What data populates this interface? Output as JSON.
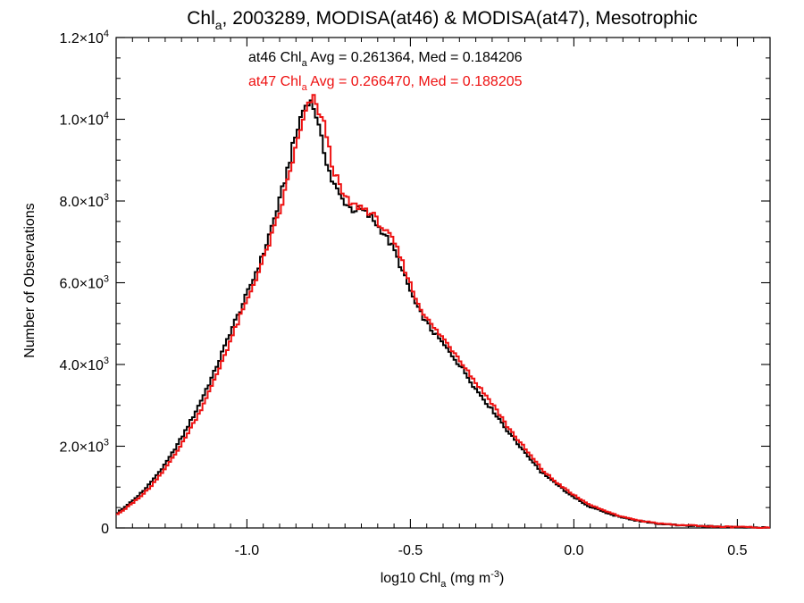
{
  "chart_data": {
    "type": "line",
    "step": true,
    "title": {
      "pre": "Chl",
      "sub": "a",
      "post": ", 2003289, MODISA(at46) & MODISA(at47), Mesotrophic"
    },
    "xlabel": {
      "pre": "log10 Chl",
      "sub": "a",
      "mid": " (mg m",
      "sup": "-3",
      "post": ")"
    },
    "ylabel": "Number of Observations",
    "xlim": [
      -1.4,
      0.6
    ],
    "ylim": [
      0,
      12000
    ],
    "x_ticks": [
      {
        "value": -1.0,
        "label": "-1.0"
      },
      {
        "value": -0.5,
        "label": "-0.5"
      },
      {
        "value": 0.0,
        "label": "0.0"
      },
      {
        "value": 0.5,
        "label": "0.5"
      }
    ],
    "y_ticks": [
      {
        "value": 0,
        "label": "0"
      },
      {
        "value": 2000,
        "mant": "2.0",
        "exp": "3"
      },
      {
        "value": 4000,
        "mant": "4.0",
        "exp": "3"
      },
      {
        "value": 6000,
        "mant": "6.0",
        "exp": "3"
      },
      {
        "value": 8000,
        "mant": "8.0",
        "exp": "3"
      },
      {
        "value": 10000,
        "mant": "1.0",
        "exp": "4"
      },
      {
        "value": 12000,
        "mant": "1.2",
        "exp": "4"
      }
    ],
    "times_sign": "×10",
    "grid": false,
    "legend_placement": "top-center",
    "series": [
      {
        "name": "at46",
        "color": "#000000",
        "stats": {
          "pre": "at46 Chl",
          "sub": "a",
          "post": " Avg = 0.261364, Med = 0.184206"
        },
        "anchors": [
          [
            -1.4,
            350
          ],
          [
            -1.35,
            650
          ],
          [
            -1.3,
            1050
          ],
          [
            -1.25,
            1550
          ],
          [
            -1.2,
            2200
          ],
          [
            -1.15,
            2950
          ],
          [
            -1.1,
            3800
          ],
          [
            -1.05,
            4800
          ],
          [
            -1.0,
            5700
          ],
          [
            -0.95,
            6700
          ],
          [
            -0.9,
            8000
          ],
          [
            -0.86,
            9300
          ],
          [
            -0.83,
            10200
          ],
          [
            -0.81,
            10500
          ],
          [
            -0.79,
            10200
          ],
          [
            -0.77,
            9400
          ],
          [
            -0.74,
            8500
          ],
          [
            -0.71,
            8050
          ],
          [
            -0.68,
            7800
          ],
          [
            -0.65,
            7780
          ],
          [
            -0.62,
            7600
          ],
          [
            -0.58,
            7200
          ],
          [
            -0.55,
            6800
          ],
          [
            -0.52,
            6200
          ],
          [
            -0.48,
            5400
          ],
          [
            -0.44,
            4900
          ],
          [
            -0.4,
            4500
          ],
          [
            -0.35,
            4000
          ],
          [
            -0.3,
            3400
          ],
          [
            -0.25,
            2900
          ],
          [
            -0.2,
            2350
          ],
          [
            -0.15,
            1850
          ],
          [
            -0.1,
            1380
          ],
          [
            -0.05,
            1050
          ],
          [
            0.0,
            750
          ],
          [
            0.05,
            520
          ],
          [
            0.1,
            370
          ],
          [
            0.15,
            250
          ],
          [
            0.2,
            170
          ],
          [
            0.25,
            110
          ],
          [
            0.3,
            80
          ],
          [
            0.35,
            60
          ],
          [
            0.4,
            45
          ],
          [
            0.45,
            30
          ],
          [
            0.5,
            22
          ],
          [
            0.55,
            15
          ],
          [
            0.6,
            10
          ]
        ]
      },
      {
        "name": "at47",
        "color": "#ee1111",
        "stats": {
          "pre": "at47 Chl",
          "sub": "a",
          "post": " Avg = 0.266470, Med = 0.188205"
        },
        "anchors": [
          [
            -1.4,
            320
          ],
          [
            -1.35,
            600
          ],
          [
            -1.3,
            950
          ],
          [
            -1.25,
            1450
          ],
          [
            -1.2,
            2050
          ],
          [
            -1.15,
            2750
          ],
          [
            -1.1,
            3600
          ],
          [
            -1.05,
            4600
          ],
          [
            -1.0,
            5550
          ],
          [
            -0.95,
            6550
          ],
          [
            -0.9,
            7700
          ],
          [
            -0.86,
            9000
          ],
          [
            -0.83,
            9900
          ],
          [
            -0.81,
            10350
          ],
          [
            -0.8,
            10550
          ],
          [
            -0.78,
            10200
          ],
          [
            -0.76,
            9800
          ],
          [
            -0.74,
            8900
          ],
          [
            -0.71,
            8200
          ],
          [
            -0.68,
            7900
          ],
          [
            -0.65,
            7850
          ],
          [
            -0.62,
            7700
          ],
          [
            -0.58,
            7300
          ],
          [
            -0.55,
            7000
          ],
          [
            -0.52,
            6400
          ],
          [
            -0.48,
            5550
          ],
          [
            -0.44,
            5000
          ],
          [
            -0.4,
            4650
          ],
          [
            -0.35,
            4150
          ],
          [
            -0.3,
            3550
          ],
          [
            -0.25,
            3050
          ],
          [
            -0.2,
            2450
          ],
          [
            -0.15,
            1950
          ],
          [
            -0.1,
            1450
          ],
          [
            -0.05,
            1100
          ],
          [
            0.0,
            800
          ],
          [
            0.05,
            560
          ],
          [
            0.1,
            400
          ],
          [
            0.15,
            270
          ],
          [
            0.2,
            185
          ],
          [
            0.25,
            120
          ],
          [
            0.3,
            85
          ],
          [
            0.35,
            65
          ],
          [
            0.4,
            48
          ],
          [
            0.45,
            32
          ],
          [
            0.5,
            24
          ],
          [
            0.55,
            16
          ],
          [
            0.6,
            10
          ]
        ]
      }
    ]
  }
}
